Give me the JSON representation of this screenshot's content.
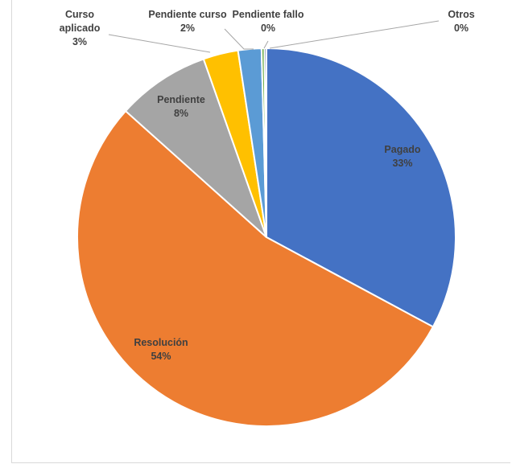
{
  "chart_data": {
    "type": "pie",
    "title": "",
    "slices": [
      {
        "label": "Pagado",
        "value": 33,
        "value_text": "33%",
        "color": "#4472C4"
      },
      {
        "label": "Resolución",
        "value": 54,
        "value_text": "54%",
        "color": "#ED7D31"
      },
      {
        "label": "Pendiente",
        "value": 8,
        "value_text": "8%",
        "color": "#A5A5A5"
      },
      {
        "label": "Curso aplicado",
        "value": 3,
        "value_text": "3%",
        "color": "#FFC000"
      },
      {
        "label": "Pendiente curso",
        "value": 2,
        "value_text": "2%",
        "color": "#5B9BD5"
      },
      {
        "label": "Pendiente fallo",
        "value": 0,
        "value_text": "0%",
        "color": "#70AD47"
      },
      {
        "label": "Otros",
        "value": 0,
        "value_text": "0%",
        "color": "#264478"
      }
    ],
    "legend": "none",
    "data_labels": "outside-with-leaders-for-small-slices"
  }
}
